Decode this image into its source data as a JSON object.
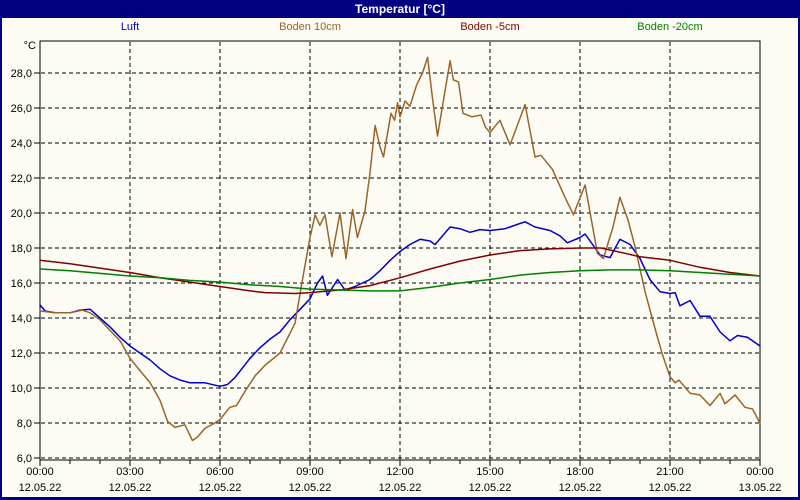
{
  "window": {
    "title": "Temperatur [°C]"
  },
  "colors": {
    "frame": "#000080",
    "background": "#FCFCF4",
    "axis": "#000000",
    "luft": "#0000CC",
    "boden10": "#9C6428",
    "boden_minus5": "#800000",
    "boden_minus20": "#008000"
  },
  "legend": {
    "items": [
      {
        "id": "luft",
        "label": "Luft",
        "color": "#0000CC"
      },
      {
        "id": "boden10",
        "label": "Boden 10cm",
        "color": "#9C6428"
      },
      {
        "id": "boden-5",
        "label": "Boden -5cm",
        "color": "#800000"
      },
      {
        "id": "boden-20",
        "label": "Boden -20cm",
        "color": "#008000"
      }
    ]
  },
  "chart_data": {
    "type": "line",
    "title": "Temperatur [°C]",
    "ylabel": "°C",
    "xlabel": "",
    "unit_label": "°C",
    "grid": "dashed",
    "legend_position": "top",
    "ylim": [
      6,
      29.8
    ],
    "xlim_hours": [
      0,
      24
    ],
    "y_ticks": [
      {
        "value": 6,
        "label": "6,0"
      },
      {
        "value": 8,
        "label": "8,0"
      },
      {
        "value": 10,
        "label": "10,0"
      },
      {
        "value": 12,
        "label": "12,0"
      },
      {
        "value": 14,
        "label": "14,0"
      },
      {
        "value": 16,
        "label": "16,0"
      },
      {
        "value": 18,
        "label": "18,0"
      },
      {
        "value": 20,
        "label": "20,0"
      },
      {
        "value": 22,
        "label": "22,0"
      },
      {
        "value": 24,
        "label": "24,0"
      },
      {
        "value": 26,
        "label": "26,0"
      },
      {
        "value": 28,
        "label": "28,0"
      }
    ],
    "x_ticks": [
      {
        "hour": 0,
        "time": "00:00",
        "date": "12.05.22"
      },
      {
        "hour": 3,
        "time": "03:00",
        "date": "12.05.22"
      },
      {
        "hour": 6,
        "time": "06:00",
        "date": "12.05.22"
      },
      {
        "hour": 9,
        "time": "09:00",
        "date": "12.05.22"
      },
      {
        "hour": 12,
        "time": "12:00",
        "date": "12.05.22"
      },
      {
        "hour": 15,
        "time": "15:00",
        "date": "12.05.22"
      },
      {
        "hour": 18,
        "time": "18:00",
        "date": "12.05.22"
      },
      {
        "hour": 21,
        "time": "21:00",
        "date": "12.05.22"
      },
      {
        "hour": 24,
        "time": "00:00",
        "date": "13.05.22"
      }
    ],
    "series": [
      {
        "name": "Luft",
        "color": "#0000CC",
        "points": [
          [
            0,
            14.75
          ],
          [
            0.17,
            14.4
          ],
          [
            0.5,
            14.3
          ],
          [
            1,
            14.3
          ],
          [
            1.33,
            14.45
          ],
          [
            1.67,
            14.5
          ],
          [
            2,
            14.0
          ],
          [
            2.33,
            13.5
          ],
          [
            2.67,
            12.9
          ],
          [
            3,
            12.4
          ],
          [
            3.33,
            12.0
          ],
          [
            3.67,
            11.6
          ],
          [
            4,
            11.1
          ],
          [
            4.33,
            10.7
          ],
          [
            4.67,
            10.45
          ],
          [
            5,
            10.3
          ],
          [
            5.5,
            10.3
          ],
          [
            6,
            10.1
          ],
          [
            6.25,
            10.2
          ],
          [
            6.5,
            10.6
          ],
          [
            7,
            11.7
          ],
          [
            7.33,
            12.3
          ],
          [
            7.67,
            12.8
          ],
          [
            8,
            13.2
          ],
          [
            8.33,
            13.9
          ],
          [
            8.67,
            14.5
          ],
          [
            9,
            15.1
          ],
          [
            9.25,
            16.0
          ],
          [
            9.42,
            16.4
          ],
          [
            9.58,
            15.3
          ],
          [
            9.92,
            16.2
          ],
          [
            10.17,
            15.6
          ],
          [
            10.5,
            15.8
          ],
          [
            11,
            16.2
          ],
          [
            11.33,
            16.7
          ],
          [
            11.67,
            17.3
          ],
          [
            12,
            17.8
          ],
          [
            12.33,
            18.2
          ],
          [
            12.67,
            18.5
          ],
          [
            13,
            18.4
          ],
          [
            13.17,
            18.2
          ],
          [
            13.67,
            19.2
          ],
          [
            14,
            19.1
          ],
          [
            14.33,
            18.9
          ],
          [
            14.67,
            19.05
          ],
          [
            15,
            19.0
          ],
          [
            15.5,
            19.1
          ],
          [
            16,
            19.4
          ],
          [
            16.17,
            19.5
          ],
          [
            16.5,
            19.2
          ],
          [
            17,
            19.0
          ],
          [
            17.33,
            18.7
          ],
          [
            17.58,
            18.3
          ],
          [
            18,
            18.6
          ],
          [
            18.17,
            18.8
          ],
          [
            18.67,
            17.6
          ],
          [
            19,
            17.45
          ],
          [
            19.33,
            18.5
          ],
          [
            19.67,
            18.2
          ],
          [
            20,
            17.4
          ],
          [
            20.33,
            16.2
          ],
          [
            20.67,
            15.5
          ],
          [
            21,
            15.4
          ],
          [
            21.17,
            15.45
          ],
          [
            21.33,
            14.7
          ],
          [
            21.67,
            15.0
          ],
          [
            22,
            14.1
          ],
          [
            22.33,
            14.1
          ],
          [
            22.67,
            13.2
          ],
          [
            23,
            12.7
          ],
          [
            23.25,
            13.0
          ],
          [
            23.58,
            12.9
          ],
          [
            24,
            12.4
          ]
        ]
      },
      {
        "name": "Boden 10cm",
        "color": "#9C6428",
        "points": [
          [
            0,
            14.4
          ],
          [
            0.5,
            14.3
          ],
          [
            1,
            14.3
          ],
          [
            1.4,
            14.45
          ],
          [
            1.67,
            14.3
          ],
          [
            2,
            13.9
          ],
          [
            2.33,
            13.3
          ],
          [
            2.67,
            12.7
          ],
          [
            3,
            11.7
          ],
          [
            3.33,
            11.0
          ],
          [
            3.67,
            10.3
          ],
          [
            4,
            9.3
          ],
          [
            4.25,
            8.1
          ],
          [
            4.5,
            7.75
          ],
          [
            4.83,
            7.9
          ],
          [
            5.08,
            7.0
          ],
          [
            5.25,
            7.2
          ],
          [
            5.5,
            7.7
          ],
          [
            5.83,
            8.0
          ],
          [
            6,
            8.2
          ],
          [
            6.33,
            8.9
          ],
          [
            6.55,
            9.0
          ],
          [
            6.83,
            9.8
          ],
          [
            7.17,
            10.7
          ],
          [
            7.5,
            11.3
          ],
          [
            8,
            12.0
          ],
          [
            8.5,
            13.7
          ],
          [
            8.75,
            16.2
          ],
          [
            9,
            18.6
          ],
          [
            9.17,
            19.9
          ],
          [
            9.33,
            19.3
          ],
          [
            9.5,
            19.9
          ],
          [
            9.73,
            17.5
          ],
          [
            10,
            20.0
          ],
          [
            10.2,
            17.4
          ],
          [
            10.42,
            20.2
          ],
          [
            10.58,
            18.6
          ],
          [
            10.83,
            20.1
          ],
          [
            11,
            22.3
          ],
          [
            11.17,
            25.0
          ],
          [
            11.33,
            23.8
          ],
          [
            11.45,
            23.2
          ],
          [
            11.7,
            25.7
          ],
          [
            11.82,
            25.3
          ],
          [
            11.92,
            26.3
          ],
          [
            12,
            25.5
          ],
          [
            12.17,
            26.4
          ],
          [
            12.33,
            26.1
          ],
          [
            12.55,
            27.3
          ],
          [
            12.75,
            28.0
          ],
          [
            12.92,
            28.9
          ],
          [
            13.08,
            26.6
          ],
          [
            13.25,
            24.4
          ],
          [
            13.67,
            28.7
          ],
          [
            13.78,
            27.6
          ],
          [
            13.95,
            27.5
          ],
          [
            14.1,
            25.7
          ],
          [
            14.4,
            25.5
          ],
          [
            14.7,
            25.6
          ],
          [
            14.85,
            24.9
          ],
          [
            15,
            24.6
          ],
          [
            15.33,
            25.3
          ],
          [
            15.67,
            23.9
          ],
          [
            16.17,
            26.2
          ],
          [
            16.5,
            23.2
          ],
          [
            16.7,
            23.3
          ],
          [
            17.08,
            22.5
          ],
          [
            17.5,
            20.9
          ],
          [
            17.78,
            19.9
          ],
          [
            18.17,
            21.6
          ],
          [
            18.58,
            17.7
          ],
          [
            18.78,
            17.4
          ],
          [
            19.1,
            19.2
          ],
          [
            19.33,
            20.9
          ],
          [
            19.6,
            19.6
          ],
          [
            19.83,
            18.1
          ],
          [
            20.17,
            15.5
          ],
          [
            20.5,
            13.4
          ],
          [
            20.75,
            11.9
          ],
          [
            21,
            10.65
          ],
          [
            21.17,
            10.3
          ],
          [
            21.3,
            10.45
          ],
          [
            21.67,
            9.7
          ],
          [
            22,
            9.6
          ],
          [
            22.33,
            9.0
          ],
          [
            22.67,
            9.7
          ],
          [
            22.83,
            9.1
          ],
          [
            23.17,
            9.6
          ],
          [
            23.5,
            8.9
          ],
          [
            23.75,
            8.8
          ],
          [
            24,
            8.0
          ]
        ]
      },
      {
        "name": "Boden -5cm",
        "color": "#800000",
        "points": [
          [
            0,
            17.3
          ],
          [
            1,
            17.1
          ],
          [
            2,
            16.85
          ],
          [
            3,
            16.6
          ],
          [
            4,
            16.3
          ],
          [
            5,
            16.05
          ],
          [
            6,
            15.8
          ],
          [
            7,
            15.55
          ],
          [
            7.5,
            15.45
          ],
          [
            8.5,
            15.4
          ],
          [
            9,
            15.45
          ],
          [
            10,
            15.6
          ],
          [
            11,
            15.85
          ],
          [
            12,
            16.3
          ],
          [
            13,
            16.8
          ],
          [
            14,
            17.25
          ],
          [
            15,
            17.6
          ],
          [
            16,
            17.85
          ],
          [
            17,
            17.95
          ],
          [
            18,
            18.0
          ],
          [
            18.7,
            18.0
          ],
          [
            19.5,
            17.7
          ],
          [
            20,
            17.5
          ],
          [
            21,
            17.3
          ],
          [
            22,
            16.9
          ],
          [
            23,
            16.6
          ],
          [
            24,
            16.4
          ]
        ]
      },
      {
        "name": "Boden -20cm",
        "color": "#008000",
        "points": [
          [
            0,
            16.8
          ],
          [
            1,
            16.7
          ],
          [
            2,
            16.55
          ],
          [
            3,
            16.4
          ],
          [
            4,
            16.3
          ],
          [
            5,
            16.15
          ],
          [
            6,
            16.05
          ],
          [
            7,
            15.9
          ],
          [
            8,
            15.8
          ],
          [
            9,
            15.65
          ],
          [
            10,
            15.6
          ],
          [
            11,
            15.55
          ],
          [
            12,
            15.55
          ],
          [
            13,
            15.75
          ],
          [
            14,
            16.0
          ],
          [
            15,
            16.2
          ],
          [
            16,
            16.45
          ],
          [
            17,
            16.6
          ],
          [
            18,
            16.7
          ],
          [
            19,
            16.75
          ],
          [
            20,
            16.75
          ],
          [
            21,
            16.7
          ],
          [
            22,
            16.6
          ],
          [
            23,
            16.5
          ],
          [
            24,
            16.4
          ]
        ]
      }
    ]
  }
}
